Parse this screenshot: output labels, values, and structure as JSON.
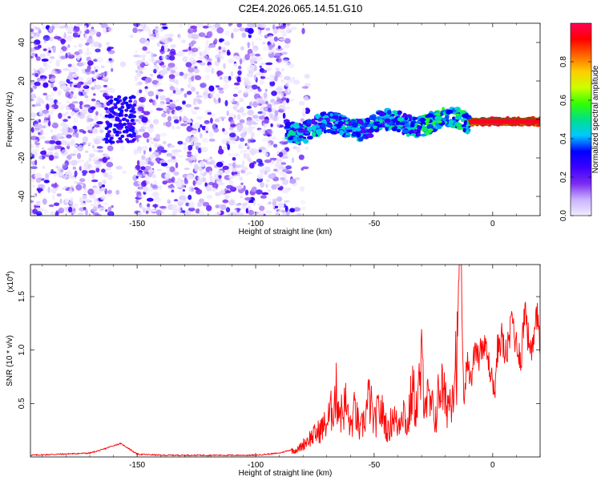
{
  "title": "C2E4.2026.065.14.51.G10",
  "chart_data": [
    {
      "type": "heatmap",
      "xlabel": "Height of straight line (km)",
      "ylabel": "Frequency (Hz)",
      "xlim": [
        -195,
        20
      ],
      "ylim": [
        -50,
        50
      ],
      "xticks": [
        -150,
        -100,
        -50,
        0
      ],
      "yticks": [
        -40,
        -20,
        0,
        20,
        40
      ],
      "colorbar": {
        "label": "Normalized spectral amplitude",
        "ticks": [
          "0.0",
          "0.2",
          "0.4",
          "0.6",
          "0.8"
        ],
        "range": [
          0,
          1
        ],
        "colormap": [
          "#f2ecff",
          "#c9b3ff",
          "#7a2cf0",
          "#3d00ff",
          "#0000ff",
          "#00c8ff",
          "#00e08a",
          "#33ff00",
          "#ccff00",
          "#ffcc00",
          "#ff6600",
          "#ff0000",
          "#ff0055"
        ]
      },
      "features": {
        "noise_region_km": [
          -195,
          -78
        ],
        "gap_km": [
          -160,
          -151
        ],
        "blob_center_km": -157,
        "signal_band_km": [
          -87,
          20
        ],
        "strong_line_km": [
          -10,
          20
        ],
        "strong_line_freq_hz": -1
      }
    },
    {
      "type": "line",
      "xlabel": "Height of straight line (km)",
      "ylabel": "SNR (10 * v/v)",
      "yscale_label": "(x10",
      "yscale_exp": "4",
      "yscale_suffix": ")",
      "xlim": [
        -195,
        20
      ],
      "ylim": [
        0,
        1.8
      ],
      "xticks": [
        -150,
        -100,
        -50,
        0
      ],
      "yticks": [
        "0.5",
        "1.0",
        "1.5"
      ],
      "series": [
        {
          "color": "#ff0000",
          "x": [
            -195,
            -170,
            -165,
            -160,
            -157,
            -154,
            -150,
            -140,
            -120,
            -100,
            -90,
            -82,
            -78,
            -74,
            -70,
            -68,
            -66,
            -64,
            -62,
            -60,
            -58,
            -56,
            -54,
            -52,
            -50,
            -48,
            -46,
            -44,
            -42,
            -40,
            -38,
            -36,
            -34,
            -32,
            -30,
            -28,
            -26,
            -24,
            -22,
            -20,
            -18,
            -16,
            -15,
            -14,
            -13,
            -12,
            -11,
            -10,
            -9,
            -8,
            -7,
            -6,
            -5,
            -4,
            -3,
            -2,
            -1,
            0,
            1,
            2,
            3,
            4,
            5,
            6,
            7,
            8,
            9,
            10,
            11,
            12,
            13,
            14,
            15,
            16,
            17,
            18,
            19,
            20
          ],
          "y": [
            0.01,
            0.03,
            0.06,
            0.1,
            0.12,
            0.08,
            0.02,
            0.01,
            0.01,
            0.01,
            0.03,
            0.08,
            0.18,
            0.25,
            0.35,
            0.48,
            0.66,
            0.45,
            0.55,
            0.3,
            0.5,
            0.25,
            0.4,
            0.62,
            0.33,
            0.5,
            0.42,
            0.25,
            0.45,
            0.3,
            0.55,
            0.28,
            0.7,
            0.5,
            0.92,
            0.6,
            0.5,
            0.42,
            0.78,
            0.55,
            0.6,
            0.95,
            1.1,
            1.8,
            1.3,
            0.45,
            0.9,
            0.8,
            0.7,
            1.0,
            1.05,
            0.9,
            1.1,
            0.95,
            1.05,
            0.92,
            0.8,
            0.7,
            0.6,
            1.0,
            1.1,
            1.12,
            0.95,
            1.0,
            1.05,
            1.35,
            1.18,
            1.05,
            1.0,
            0.9,
            1.25,
            1.42,
            1.1,
            1.05,
            1.0,
            1.2,
            1.28,
            1.12
          ]
        }
      ]
    }
  ]
}
